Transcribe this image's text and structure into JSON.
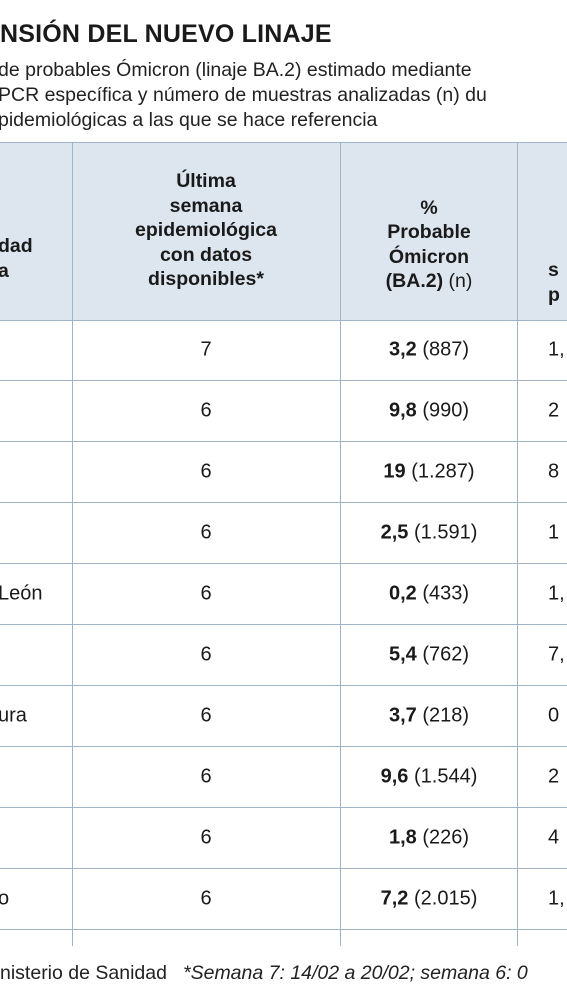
{
  "title": "NSIÓN DEL NUEVO LINAJE",
  "subtitle": [
    "de probables Ómicron (linaje BA.2) estimado mediante",
    "PCR específica y número de muestras analizadas (n) du",
    "pidemiológicas a las que se hace referencia"
  ],
  "table": {
    "headers": {
      "col1": [
        "dad",
        "a"
      ],
      "col2": [
        "Última",
        "semana",
        "epidemiológica",
        "con datos",
        "disponibles*"
      ],
      "col3": [
        "%",
        "Probable",
        "Ómicron"
      ],
      "col3_last_bold": "(BA.2)",
      "col3_last_normal": "(n)",
      "col4": [
        "s",
        "p"
      ]
    },
    "rows": [
      {
        "region": "",
        "week": "7",
        "pct": "3,2",
        "n": "(887)",
        "next": "1,"
      },
      {
        "region": "",
        "week": "6",
        "pct": "9,8",
        "n": "(990)",
        "next": "2"
      },
      {
        "region": "",
        "week": "6",
        "pct": "19",
        "n": "(1.287)",
        "next": "8"
      },
      {
        "region": "",
        "week": "6",
        "pct": "2,5",
        "n": "(1.591)",
        "next": "1"
      },
      {
        "region": "León",
        "week": "6",
        "pct": "0,2",
        "n": "(433)",
        "next": "1,"
      },
      {
        "region": "",
        "week": "6",
        "pct": "5,4",
        "n": "(762)",
        "next": "7,"
      },
      {
        "region": "ura",
        "week": "6",
        "pct": "3,7",
        "n": "(218)",
        "next": "0"
      },
      {
        "region": "",
        "week": "6",
        "pct": "9,6",
        "n": "(1.544)",
        "next": "2"
      },
      {
        "region": "",
        "week": "6",
        "pct": "1,8",
        "n": "(226)",
        "next": "4"
      },
      {
        "region": "o",
        "week": "6",
        "pct": "7,2",
        "n": "(2.015)",
        "next": "1,"
      }
    ]
  },
  "footer": {
    "source": "nisterio de Sanidad",
    "note": "*Semana 7: 14/02 a 20/02; semana 6: 0"
  }
}
